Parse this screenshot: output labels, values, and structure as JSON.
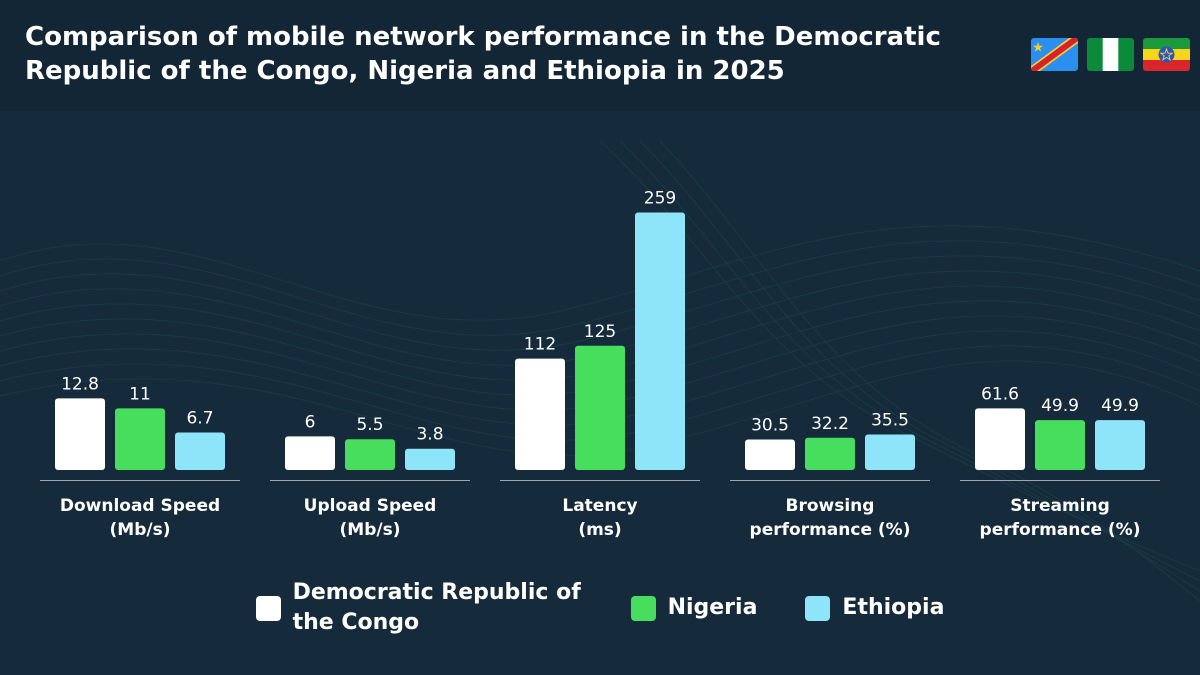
{
  "header": {
    "title": "Comparison of mobile network performance in the Democratic Republic of the Congo, Nigeria and Ethiopia in 2025",
    "flags": [
      "drc-flag-icon",
      "nigeria-flag-icon",
      "ethiopia-flag-icon"
    ]
  },
  "colors": {
    "background": "#152a3a",
    "header": "#132636",
    "axis": "#9aa8b3",
    "text": "#ffffff"
  },
  "chart_data": {
    "type": "bar",
    "categories": [
      [
        "Download Speed",
        "(Mb/s)"
      ],
      [
        "Upload Speed",
        "(Mb/s)"
      ],
      [
        "Latency",
        "(ms)"
      ],
      [
        "Browsing",
        "performance (%)"
      ],
      [
        "Streaming",
        "performance (%)"
      ]
    ],
    "series": [
      {
        "name": "Democratic Republic of the Congo",
        "color": "#ffffff",
        "values": [
          12.8,
          6,
          112,
          30.5,
          61.6
        ],
        "labels": [
          "12.8",
          "6",
          "112",
          "30.5",
          "61.6"
        ]
      },
      {
        "name": "Nigeria",
        "color": "#47de5e",
        "values": [
          11,
          5.5,
          125,
          32.2,
          49.9
        ],
        "labels": [
          "11",
          "5.5",
          "125",
          "32.2",
          "49.9"
        ]
      },
      {
        "name": "Ethiopia",
        "color": "#8ee5f9",
        "values": [
          6.7,
          3.8,
          259,
          35.5,
          49.9
        ],
        "labels": [
          "6.7",
          "3.8",
          "259",
          "35.5",
          "49.9"
        ]
      }
    ],
    "legend_position": "bottom",
    "grid": false
  },
  "legend": {
    "items": [
      {
        "label": "Democratic Republic of the Congo",
        "color": "#ffffff"
      },
      {
        "label": "Nigeria",
        "color": "#47de5e"
      },
      {
        "label": "Ethiopia",
        "color": "#8ee5f9"
      }
    ]
  }
}
